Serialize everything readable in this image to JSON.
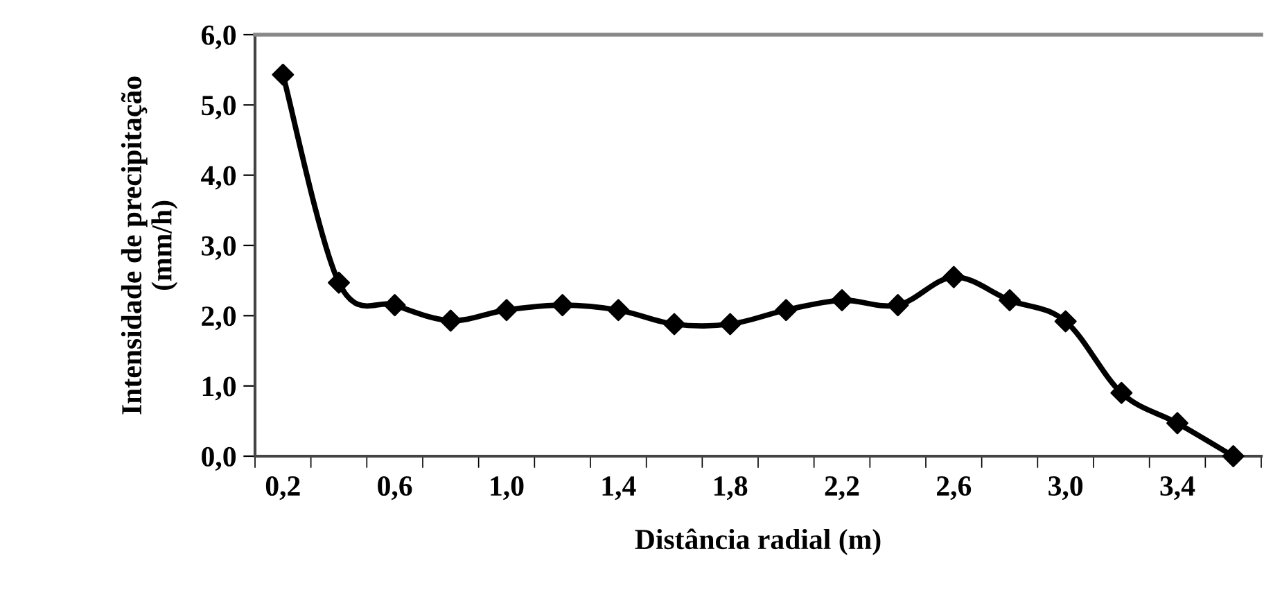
{
  "chart_data": {
    "type": "line",
    "xlabel": "Distância radial (m)",
    "ylabel": "Intensidade de precipitação\n(mm/h)",
    "categories": [
      "0,2",
      null,
      "0,6",
      null,
      "1,0",
      null,
      "1,4",
      null,
      "1,8",
      null,
      "2,2",
      null,
      "2,6",
      null,
      "3,0",
      null,
      "3,4",
      null
    ],
    "series": [
      {
        "color": "#000000",
        "values": [
          5.43,
          2.47,
          2.15,
          1.93,
          2.08,
          2.15,
          2.08,
          1.88,
          1.88,
          2.08,
          2.22,
          2.15,
          2.55,
          2.22,
          1.92,
          0.9,
          0.47,
          0.0
        ]
      }
    ],
    "ylim": [
      0,
      6
    ],
    "yticks": [
      {
        "value": 0,
        "label": "0,0"
      },
      {
        "value": 1,
        "label": "1,0"
      },
      {
        "value": 2,
        "label": "2,0"
      },
      {
        "value": 3,
        "label": "3,0"
      },
      {
        "value": 4,
        "label": "4,0"
      },
      {
        "value": 5,
        "label": "5,0"
      },
      {
        "value": 6,
        "label": "6,0"
      }
    ],
    "marker": "diamond",
    "line_style": "solid",
    "grid": false,
    "legend": false
  }
}
